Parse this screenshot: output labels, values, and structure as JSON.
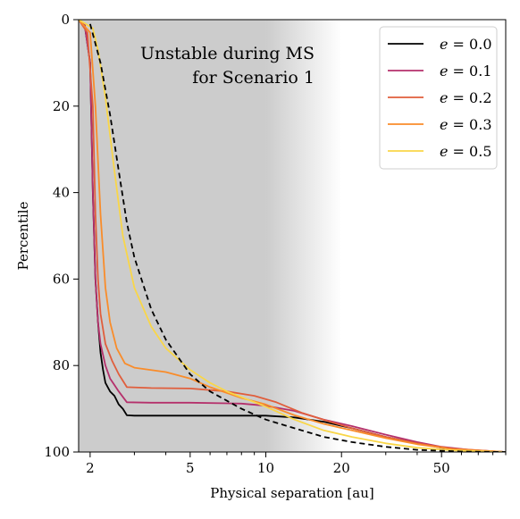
{
  "chart_data": {
    "type": "line",
    "xlabel": "Physical separation [au]",
    "ylabel": "Percentile",
    "xscale": "log",
    "xlim": [
      1.8,
      90
    ],
    "ylim": [
      100,
      0
    ],
    "y_inverted": true,
    "xticks": [
      {
        "value": 2,
        "label": "2"
      },
      {
        "value": 5,
        "label": "5"
      },
      {
        "value": 10,
        "label": "10"
      },
      {
        "value": 20,
        "label": "20"
      },
      {
        "value": 50,
        "label": "50"
      }
    ],
    "yticks": [
      {
        "value": 0,
        "label": "0"
      },
      {
        "value": 20,
        "label": "20"
      },
      {
        "value": 40,
        "label": "40"
      },
      {
        "value": 60,
        "label": "60"
      },
      {
        "value": 80,
        "label": "80"
      },
      {
        "value": 100,
        "label": "100"
      }
    ],
    "shaded_region": {
      "from": 1.8,
      "solid_to": 10,
      "fade_to": 20,
      "color": "#cccccc"
    },
    "annotation_lines": [
      "Unstable during MS",
      "for Scenario 1"
    ],
    "legend_position": "top-right",
    "series": [
      {
        "name": "e = 0.0",
        "var": "e",
        "eq": "= 0.0",
        "color": "#000000",
        "dash": "",
        "points": [
          [
            1.8,
            0
          ],
          [
            1.9,
            1
          ],
          [
            2.0,
            10
          ],
          [
            2.05,
            40
          ],
          [
            2.1,
            60
          ],
          [
            2.15,
            70
          ],
          [
            2.2,
            77
          ],
          [
            2.25,
            81
          ],
          [
            2.3,
            84
          ],
          [
            2.4,
            86
          ],
          [
            2.5,
            87
          ],
          [
            2.6,
            89
          ],
          [
            2.7,
            90
          ],
          [
            2.8,
            91.5
          ],
          [
            3,
            91.6
          ],
          [
            5,
            91.6
          ],
          [
            10,
            91.6
          ],
          [
            13,
            92
          ],
          [
            17,
            93
          ],
          [
            22,
            94.5
          ],
          [
            30,
            96.5
          ],
          [
            40,
            98
          ],
          [
            50,
            99
          ],
          [
            65,
            99.6
          ],
          [
            90,
            100
          ]
        ]
      },
      {
        "name": "e = 0.1",
        "var": "e",
        "eq": "= 0.1",
        "color": "#b5306b",
        "dash": "",
        "points": [
          [
            1.8,
            0
          ],
          [
            1.9,
            1
          ],
          [
            2.0,
            10
          ],
          [
            2.05,
            40
          ],
          [
            2.1,
            60
          ],
          [
            2.15,
            70
          ],
          [
            2.2,
            75
          ],
          [
            2.3,
            80
          ],
          [
            2.4,
            83
          ],
          [
            2.6,
            86
          ],
          [
            2.8,
            88.5
          ],
          [
            3.5,
            88.6
          ],
          [
            5,
            88.6
          ],
          [
            8,
            88.8
          ],
          [
            10,
            89.3
          ],
          [
            13,
            90.5
          ],
          [
            17,
            92.5
          ],
          [
            22,
            94
          ],
          [
            30,
            96
          ],
          [
            40,
            97.7
          ],
          [
            50,
            98.8
          ],
          [
            65,
            99.5
          ],
          [
            90,
            100
          ]
        ]
      },
      {
        "name": "e = 0.2",
        "var": "e",
        "eq": "= 0.2",
        "color": "#e05e3c",
        "dash": "",
        "points": [
          [
            1.8,
            0
          ],
          [
            1.95,
            3
          ],
          [
            2.05,
            20
          ],
          [
            2.1,
            45
          ],
          [
            2.15,
            60
          ],
          [
            2.2,
            68
          ],
          [
            2.3,
            75
          ],
          [
            2.45,
            79
          ],
          [
            2.6,
            82
          ],
          [
            2.8,
            85
          ],
          [
            3.5,
            85.2
          ],
          [
            5,
            85.3
          ],
          [
            7,
            86
          ],
          [
            9,
            87
          ],
          [
            11,
            88.5
          ],
          [
            14,
            91
          ],
          [
            18,
            93
          ],
          [
            22,
            94.5
          ],
          [
            30,
            96.5
          ],
          [
            40,
            98
          ],
          [
            55,
            99.2
          ],
          [
            90,
            100
          ]
        ]
      },
      {
        "name": "e = 0.3",
        "var": "e",
        "eq": "= 0.3",
        "color": "#f98c2a",
        "dash": "",
        "points": [
          [
            1.8,
            0
          ],
          [
            2.0,
            3
          ],
          [
            2.1,
            20
          ],
          [
            2.2,
            45
          ],
          [
            2.3,
            62
          ],
          [
            2.4,
            70
          ],
          [
            2.55,
            76
          ],
          [
            2.75,
            79.5
          ],
          [
            3,
            80.5
          ],
          [
            4,
            81.5
          ],
          [
            5,
            83
          ],
          [
            6,
            85
          ],
          [
            8,
            87.5
          ],
          [
            10,
            89
          ],
          [
            13,
            91.5
          ],
          [
            17,
            93.5
          ],
          [
            22,
            95
          ],
          [
            30,
            96.8
          ],
          [
            40,
            98.2
          ],
          [
            55,
            99.3
          ],
          [
            90,
            100
          ]
        ]
      },
      {
        "name": "e = 0.5",
        "var": "e",
        "eq": "= 0.5",
        "color": "#f9d648",
        "dash": "",
        "points": [
          [
            1.8,
            0
          ],
          [
            2.05,
            2
          ],
          [
            2.15,
            7
          ],
          [
            2.3,
            18
          ],
          [
            2.5,
            35
          ],
          [
            2.7,
            50
          ],
          [
            3,
            62
          ],
          [
            3.5,
            71
          ],
          [
            4,
            76
          ],
          [
            5,
            81
          ],
          [
            6,
            84
          ],
          [
            7,
            86
          ],
          [
            10,
            89.5
          ],
          [
            13,
            92.5
          ],
          [
            17,
            95
          ],
          [
            22,
            96.5
          ],
          [
            30,
            98
          ],
          [
            40,
            99
          ],
          [
            55,
            99.6
          ],
          [
            90,
            100
          ]
        ]
      },
      {
        "name": "",
        "var": "",
        "eq": "",
        "color": "#000000",
        "dash": "6,4",
        "points": [
          [
            2.0,
            1
          ],
          [
            2.2,
            10
          ],
          [
            2.4,
            22
          ],
          [
            2.6,
            35
          ],
          [
            2.8,
            47
          ],
          [
            3.0,
            55
          ],
          [
            3.5,
            67
          ],
          [
            4,
            74
          ],
          [
            5,
            82
          ],
          [
            6,
            86
          ],
          [
            8,
            90
          ],
          [
            10,
            92.5
          ],
          [
            13,
            94.5
          ],
          [
            17,
            96.5
          ],
          [
            22,
            97.7
          ],
          [
            30,
            98.8
          ],
          [
            40,
            99.5
          ],
          [
            60,
            99.9
          ],
          [
            90,
            100
          ]
        ]
      }
    ]
  }
}
